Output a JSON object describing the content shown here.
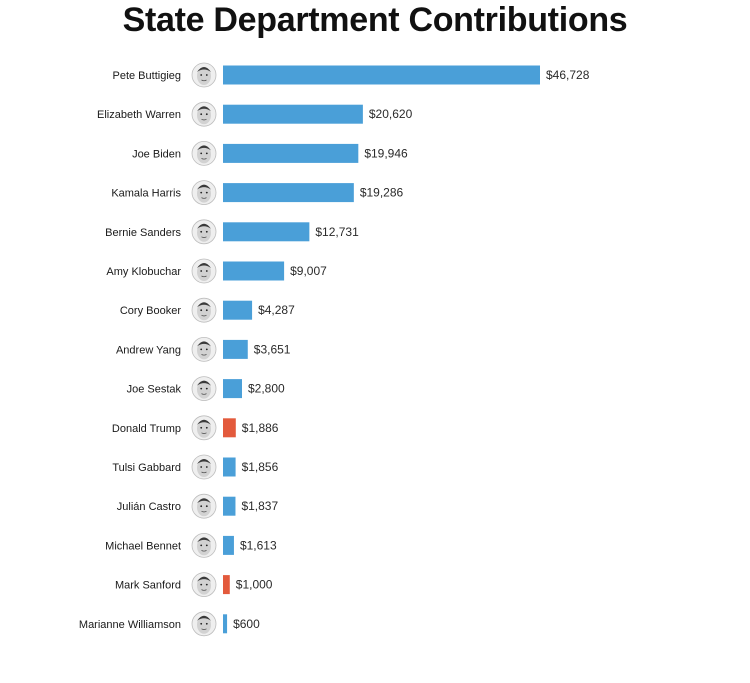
{
  "chart_data": {
    "type": "bar",
    "orientation": "horizontal",
    "title": "State Department Contributions",
    "xlabel": "",
    "ylabel": "",
    "xlim": [
      0,
      46728
    ],
    "grid": false,
    "categories": [
      "Pete Buttigieg",
      "Elizabeth Warren",
      "Joe Biden",
      "Kamala Harris",
      "Bernie Sanders",
      "Amy Klobuchar",
      "Cory Booker",
      "Andrew Yang",
      "Joe Sestak",
      "Donald Trump",
      "Tulsi Gabbard",
      "Julián Castro",
      "Michael Bennet",
      "Mark Sanford",
      "Marianne Williamson"
    ],
    "values": [
      46728,
      20620,
      19946,
      19286,
      12731,
      9007,
      4287,
      3651,
      2800,
      1886,
      1856,
      1837,
      1613,
      1000,
      600
    ],
    "value_labels": [
      "$46,728",
      "$20,620",
      "$19,946",
      "$19,286",
      "$12,731",
      "$9,007",
      "$4,287",
      "$3,651",
      "$2,800",
      "$1,886",
      "$1,856",
      "$1,837",
      "$1,613",
      "$1,000",
      "$600"
    ],
    "parties": [
      "D",
      "D",
      "D",
      "D",
      "D",
      "D",
      "D",
      "D",
      "D",
      "R",
      "D",
      "D",
      "D",
      "R",
      "D"
    ],
    "colors": {
      "D": "#4a9fd8",
      "R": "#e35a3c"
    }
  }
}
